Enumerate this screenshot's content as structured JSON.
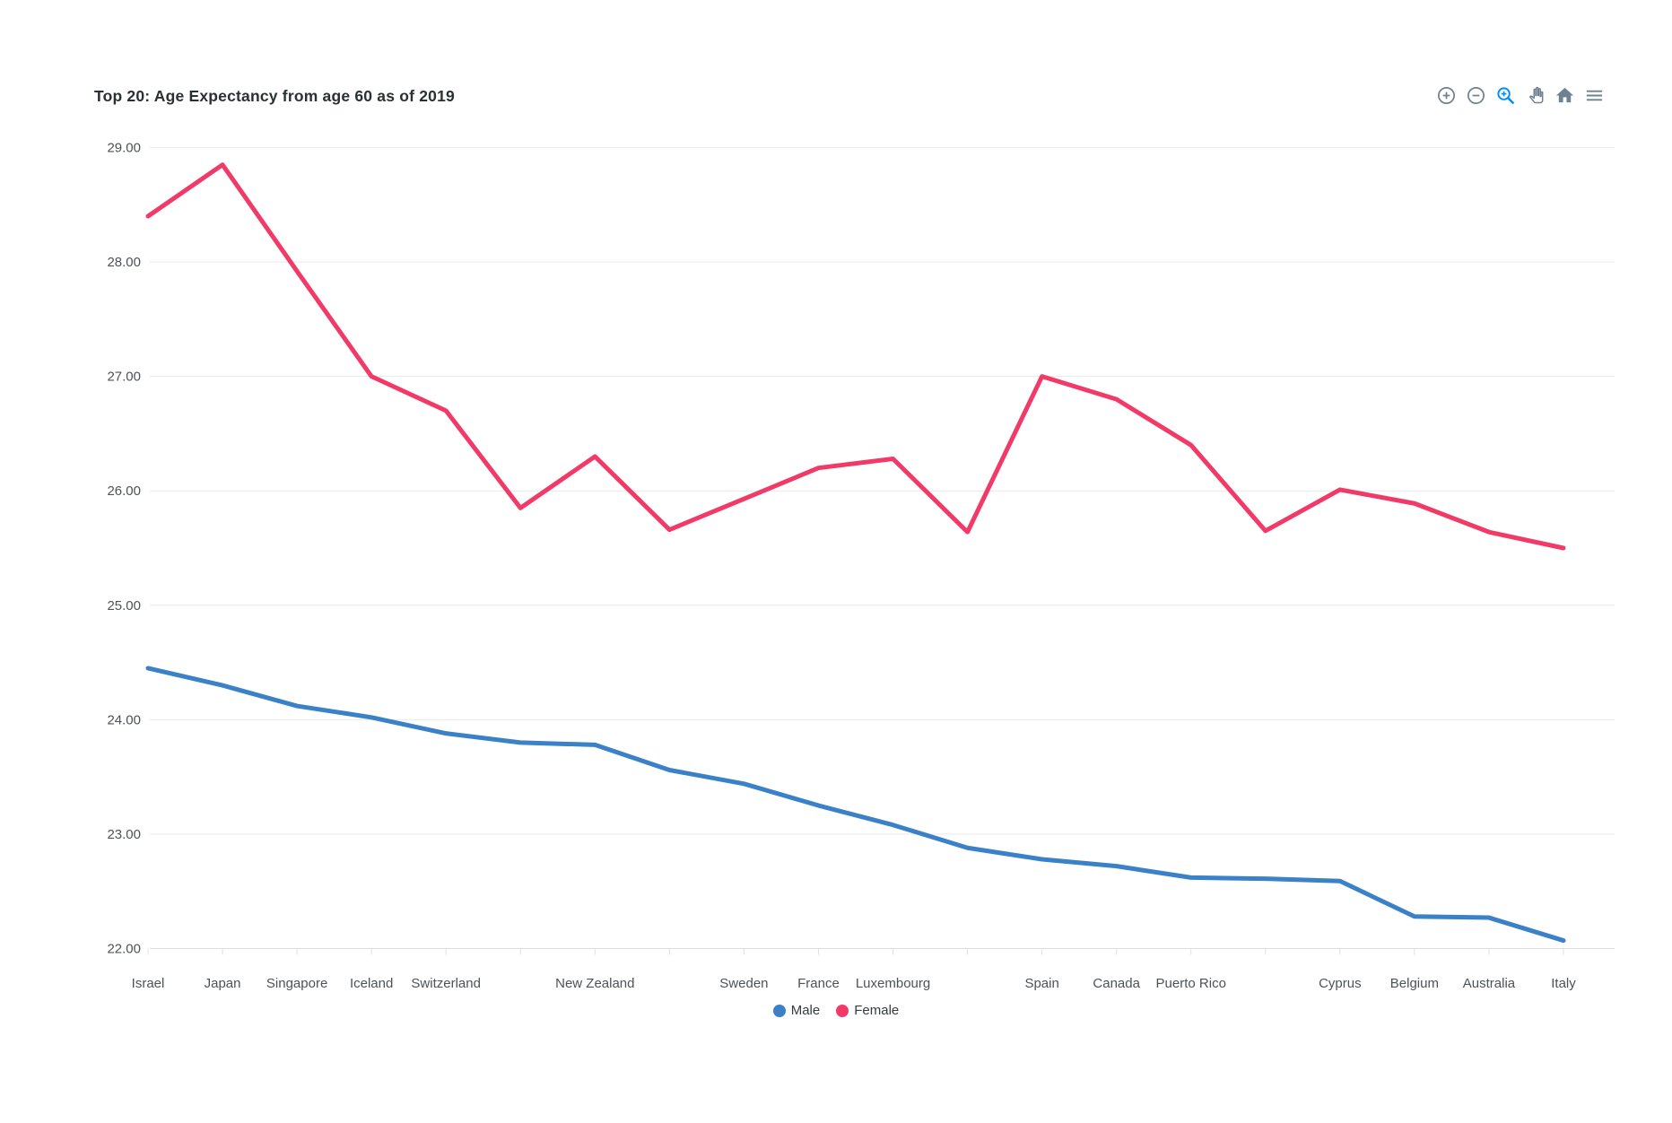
{
  "header": {
    "title": "Top 20: Age Expectancy from age 60 as of 2019"
  },
  "toolbar": {
    "icons": [
      "zoom-in",
      "zoom-out",
      "selection-zoom",
      "pan",
      "home",
      "menu"
    ],
    "active_icon": "selection-zoom",
    "icon_color": "#6E8192",
    "active_color": "#008FFB"
  },
  "chart_data": {
    "type": "line",
    "title": "Top 20: Age Expectancy from age 60 as of 2019",
    "categories": [
      "Israel",
      "Japan",
      "Singapore",
      "Iceland",
      "Switzerland",
      "",
      "New Zealand",
      "",
      "Sweden",
      "France",
      "Luxembourg",
      "",
      "Spain",
      "Canada",
      "Puerto Rico",
      "",
      "Cyprus",
      "Belgium",
      "Australia",
      "Italy"
    ],
    "series": [
      {
        "name": "Male",
        "color": "#3a81c8",
        "values": [
          24.45,
          24.3,
          24.12,
          24.02,
          23.88,
          23.8,
          23.78,
          23.56,
          23.44,
          23.25,
          23.08,
          22.88,
          22.78,
          22.72,
          22.62,
          22.61,
          22.59,
          22.28,
          22.27,
          22.07
        ]
      },
      {
        "name": "Female",
        "color": "#f23a68",
        "values": [
          28.4,
          28.85,
          27.92,
          27.0,
          26.7,
          25.85,
          26.3,
          25.66,
          25.93,
          26.2,
          26.28,
          25.64,
          27.0,
          26.8,
          26.4,
          25.65,
          26.01,
          25.89,
          25.64,
          25.5
        ]
      }
    ],
    "xlabel": "",
    "ylabel": "",
    "ylim": [
      22,
      29
    ],
    "y_ticks": [
      "29.00",
      "28.00",
      "27.00",
      "26.00",
      "25.00",
      "24.00",
      "23.00",
      "22.00"
    ],
    "grid": true,
    "legend_position": "bottom"
  }
}
